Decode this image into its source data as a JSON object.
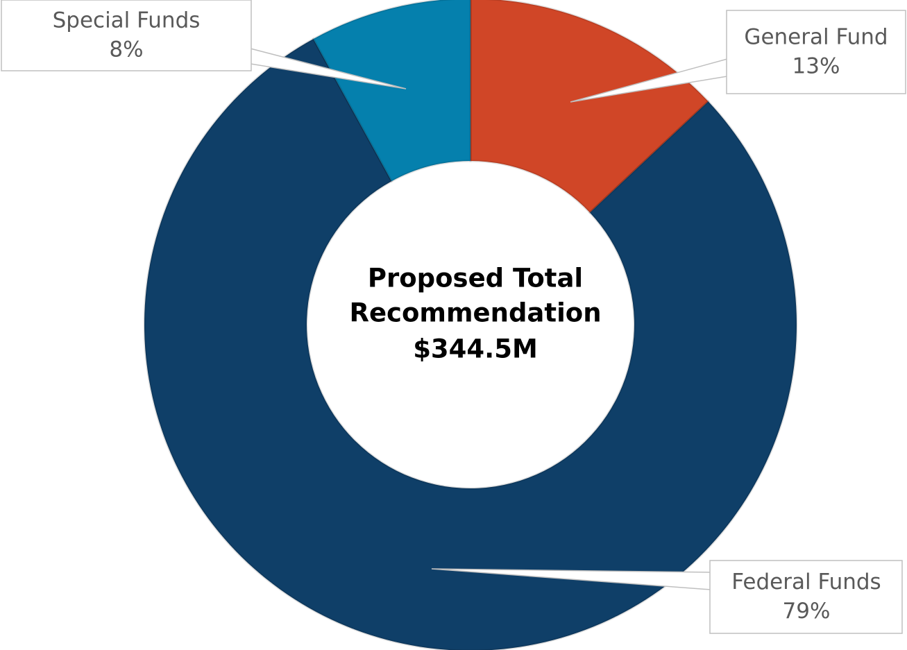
{
  "chart_data": {
    "type": "donut",
    "categories": [
      "General Fund",
      "Federal Funds",
      "Special Funds"
    ],
    "values": [
      13,
      79,
      8
    ],
    "value_labels": [
      "13%",
      "79%",
      "8%"
    ],
    "colors": [
      "#d04627",
      "#0f3f68",
      "#0580ad"
    ],
    "center_text": [
      "Proposed  Total",
      "Recommendation",
      "$344.5M"
    ]
  }
}
